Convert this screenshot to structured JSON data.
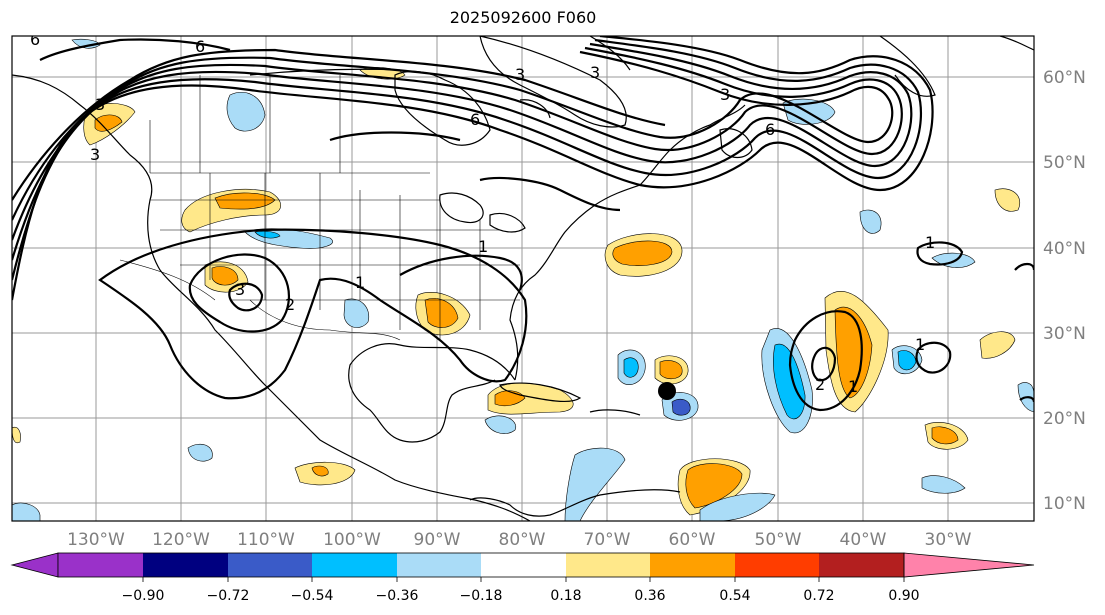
{
  "title": "2025092600 F060",
  "map": {
    "lat_labels": [
      "60°N",
      "50°N",
      "40°N",
      "30°N",
      "20°N",
      "10°N"
    ],
    "lon_labels": [
      "130°W",
      "120°W",
      "110°W",
      "100°W",
      "90°W",
      "80°W",
      "70°W",
      "60°W",
      "50°W",
      "40°W",
      "30°W"
    ],
    "contour_labels": [
      "6",
      "6",
      "6",
      "6",
      "3",
      "3",
      "3",
      "3",
      "3",
      "1",
      "1",
      "1",
      "1",
      "1",
      "2",
      "2",
      "3"
    ],
    "marker": "storm-center-dot"
  },
  "colorbar": {
    "colors": [
      "#9a31c9",
      "#000080",
      "#3a5bc8",
      "#00bfff",
      "#aadcf7",
      "#ffffff",
      "#ffe88a",
      "#ffa000",
      "#ff3d00",
      "#b31f1f",
      "#ff82aa"
    ],
    "tick_labels": [
      "−0.90",
      "−0.72",
      "−0.54",
      "−0.36",
      "−0.18",
      "0.18",
      "0.36",
      "0.54",
      "0.72",
      "0.90"
    ]
  }
}
